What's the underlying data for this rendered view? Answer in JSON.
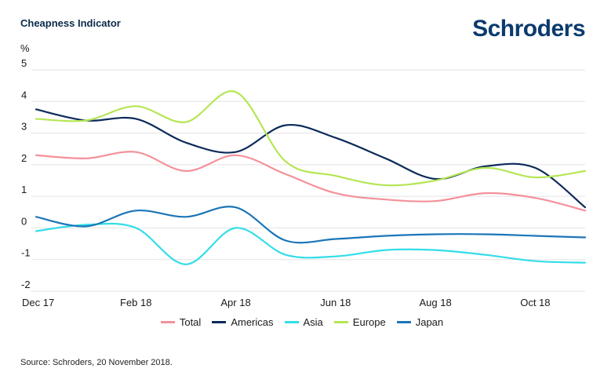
{
  "header": {
    "title": "Cheapness Indicator",
    "logo": "Schroders",
    "unit": "%"
  },
  "footer": {
    "source": "Source: Schroders, 20 November 2018."
  },
  "chart_data": {
    "type": "line",
    "title": "Cheapness Indicator",
    "ylabel": "%",
    "xlabel": "",
    "ylim": [
      -2,
      5
    ],
    "yticks": [
      5,
      4,
      3,
      2,
      1,
      0,
      -1,
      -2
    ],
    "grid": true,
    "legend_position": "bottom",
    "x_tick_labels": [
      "Dec 17",
      "Feb 18",
      "Apr 18",
      "Jun 18",
      "Aug 18",
      "Oct 18"
    ],
    "x_tick_index": [
      0,
      2,
      4,
      6,
      8,
      10
    ],
    "x": [
      "Dec 17",
      "Jan 18",
      "Feb 18",
      "Mar 18",
      "Apr 18",
      "May 18",
      "Jun 18",
      "Jul 18",
      "Aug 18",
      "Sep 18",
      "Oct 18",
      "Nov 18"
    ],
    "series": [
      {
        "name": "Total",
        "color": "#f4919a",
        "values": [
          2.3,
          2.2,
          2.4,
          1.8,
          2.3,
          1.7,
          1.1,
          0.9,
          0.85,
          1.1,
          0.95,
          0.55
        ]
      },
      {
        "name": "Americas",
        "color": "#0b2a5a",
        "values": [
          3.75,
          3.4,
          3.45,
          2.7,
          2.4,
          3.25,
          2.85,
          2.2,
          1.55,
          1.95,
          1.9,
          0.65
        ]
      },
      {
        "name": "Asia",
        "color": "#33dde8",
        "values": [
          -0.1,
          0.1,
          0.0,
          -1.15,
          0.0,
          -0.85,
          -0.9,
          -0.7,
          -0.7,
          -0.85,
          -1.05,
          -1.1
        ]
      },
      {
        "name": "Europe",
        "color": "#b5e655",
        "values": [
          3.45,
          3.4,
          3.85,
          3.35,
          4.3,
          2.1,
          1.65,
          1.35,
          1.5,
          1.9,
          1.6,
          1.8
        ]
      },
      {
        "name": "Japan",
        "color": "#1b75b8",
        "values": [
          0.35,
          0.05,
          0.55,
          0.35,
          0.65,
          -0.4,
          -0.35,
          -0.25,
          -0.2,
          -0.2,
          -0.25,
          -0.3
        ]
      }
    ]
  }
}
